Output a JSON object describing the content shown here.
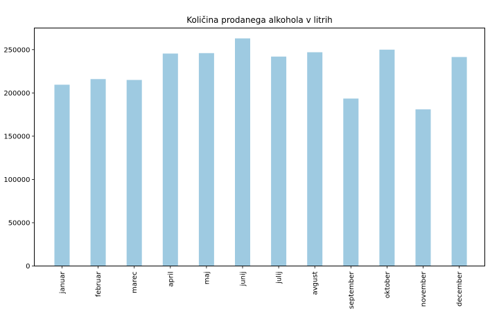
{
  "chart_data": {
    "type": "bar",
    "title": "Količina prodanega alkohola v litrih",
    "xlabel": "",
    "ylabel": "",
    "categories": [
      "januar",
      "februar",
      "marec",
      "april",
      "maj",
      "junij",
      "julij",
      "avgust",
      "september",
      "oktober",
      "november",
      "december"
    ],
    "values": [
      209500,
      216000,
      215000,
      245500,
      246000,
      263000,
      242000,
      247000,
      193500,
      250000,
      181000,
      241500
    ],
    "ylim": [
      0,
      275000
    ],
    "yticks": [
      0,
      50000,
      100000,
      150000,
      200000,
      250000
    ],
    "ytick_labels": [
      "0",
      "50000",
      "100000",
      "150000",
      "200000",
      "250000"
    ],
    "bar_color": "#9ecae1",
    "grid": false,
    "legend": "none"
  }
}
